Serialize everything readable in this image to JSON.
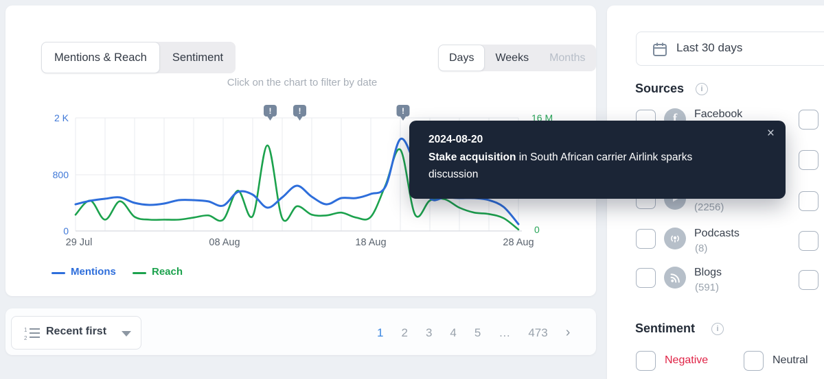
{
  "chart_card": {
    "tabs": [
      {
        "label": "Mentions & Reach",
        "active": true
      },
      {
        "label": "Sentiment",
        "active": false
      }
    ],
    "granularity": [
      {
        "label": "Days",
        "active": true
      },
      {
        "label": "Weeks",
        "active": false
      },
      {
        "label": "Months",
        "active": false
      }
    ],
    "hint": "Click on the chart to filter by date",
    "legend": [
      {
        "label": "Mentions",
        "color": "#2e6edb"
      },
      {
        "label": "Reach",
        "color": "#1ca24d"
      }
    ]
  },
  "chart_data": {
    "type": "line",
    "x_start_date": "29 Jul",
    "x_end_date": "28 Aug",
    "x_tick_labels": [
      "29 Jul",
      "08 Aug",
      "18 Aug",
      "28 Aug"
    ],
    "x_tick_days": [
      0,
      10,
      20,
      30
    ],
    "left_axis": {
      "name": "Mentions",
      "ticks": [
        "0",
        "800",
        "2 K"
      ],
      "tick_values": [
        0,
        800,
        2000
      ],
      "color": "#3f78d7"
    },
    "right_axis": {
      "name": "Reach",
      "ticks": [
        "0",
        "16 M"
      ],
      "tick_values": [
        0,
        16000000
      ],
      "color": "#28a558"
    },
    "grid": true,
    "series": [
      {
        "name": "Mentions",
        "axis": "left",
        "color": "#2e6edb",
        "values": [
          380,
          430,
          459,
          478,
          400,
          371,
          390,
          439,
          439,
          420,
          361,
          556,
          517,
          332,
          478,
          644,
          488,
          380,
          468,
          468,
          527,
          634,
          1552,
          1020,
          470,
          478,
          468,
          468,
          439,
          341,
          98
        ]
      },
      {
        "name": "Reach",
        "axis": "right",
        "color": "#1ca24d",
        "values": [
          2300000,
          4300000,
          1600000,
          4200000,
          2000000,
          1600000,
          1600000,
          1600000,
          1900000,
          2200000,
          1600000,
          5700000,
          2100000,
          12100000,
          1800000,
          3500000,
          2300000,
          2200000,
          2600000,
          1900000,
          2000000,
          6500000,
          11500000,
          2300000,
          4300000,
          4500000,
          3300000,
          2600000,
          2400000,
          1800000,
          200000
        ]
      }
    ],
    "alerts": [
      {
        "date": "2024-08-11",
        "day": 13
      },
      {
        "date": "2024-08-13",
        "day": 15
      },
      {
        "date": "2024-08-20",
        "day": 22
      }
    ],
    "alert_glyph": "!"
  },
  "tooltip": {
    "date": "2024-08-20",
    "highlight": "Stake acquisition",
    "text": " in South African carrier Airlink sparks discussion",
    "close_icon": "×"
  },
  "sidebar": {
    "date_range_label": "Last 30 days",
    "sources": {
      "title": "Sources",
      "items": [
        {
          "icon": "facebook",
          "label": "Facebook",
          "count": ""
        },
        {
          "icon": "",
          "label": "",
          "count": ""
        },
        {
          "icon": "video-play",
          "label": "",
          "count": "(2256)"
        },
        {
          "icon": "podcast",
          "label": "Podcasts",
          "count": "(8)"
        },
        {
          "icon": "rss",
          "label": "Blogs",
          "count": "(591)"
        }
      ]
    },
    "sentiment": {
      "title": "Sentiment",
      "options": [
        {
          "label": "Negative",
          "color": "#e02346"
        },
        {
          "label": "Neutral",
          "color": "#39414d"
        }
      ]
    }
  },
  "footer": {
    "sort_label": "Recent first",
    "pagination": {
      "pages": [
        "1",
        "2",
        "3",
        "4",
        "5",
        "…",
        "473"
      ],
      "active_page": "1",
      "next_icon": "›"
    }
  }
}
